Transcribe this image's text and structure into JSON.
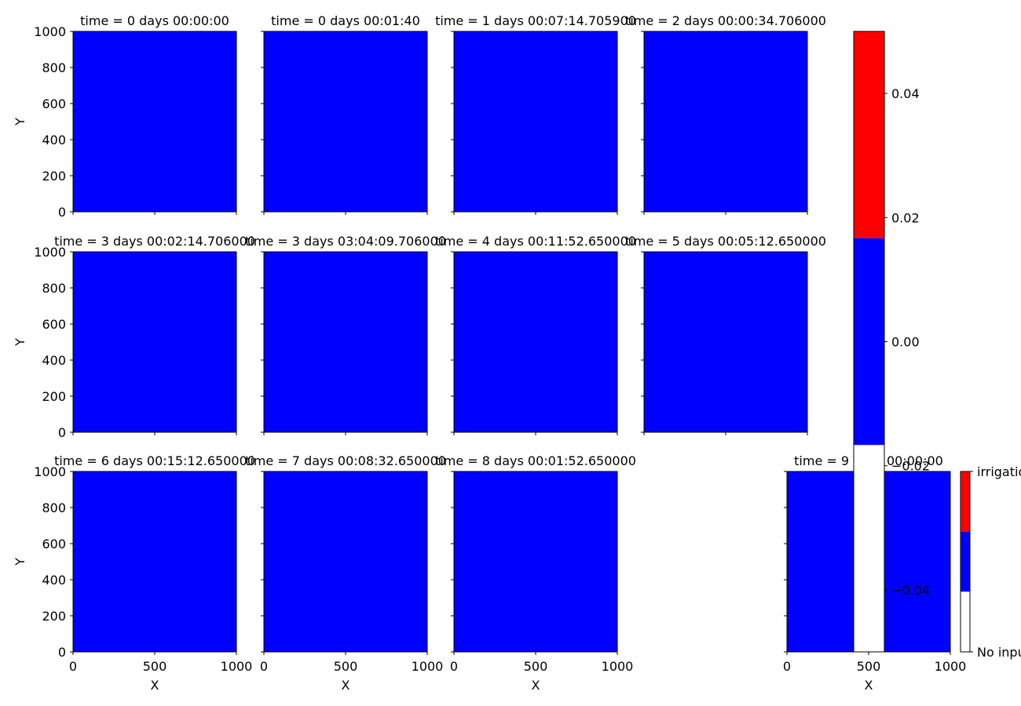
{
  "chart_data": {
    "type": "heatmap",
    "colors": {
      "field": "#0000ff",
      "irrigation": "#ff0000",
      "no_input": "#ffffff"
    },
    "panels": [
      {
        "title": "time = 0 days 00:00:00"
      },
      {
        "title": "time = 0 days 00:01:40"
      },
      {
        "title": "time = 1 days 00:07:14.705900"
      },
      {
        "title": "time = 2 days 00:00:34.706000"
      },
      {
        "title": "time = 3 days 00:02:14.706000"
      },
      {
        "title": "time = 3 days 03:04:09.706000"
      },
      {
        "title": "time = 4 days 00:11:52.650000"
      },
      {
        "title": "time = 5 days 00:05:12.650000"
      },
      {
        "title": "time = 6 days 00:15:12.650000"
      },
      {
        "title": "time = 7 days 00:08:32.650000"
      },
      {
        "title": "time = 8 days 00:01:52.650000"
      },
      {
        "title": "time = 9 days 00:00:00"
      }
    ],
    "xlabel": "X",
    "ylabel": "Y",
    "xlim": [
      0,
      1000
    ],
    "ylim": [
      0,
      1000
    ],
    "x_ticks": [
      "0",
      "500",
      "1000"
    ],
    "y_ticks": [
      "0",
      "200",
      "400",
      "600",
      "800",
      "1000"
    ],
    "colorbar_main": {
      "range": [
        -0.05,
        0.05
      ],
      "ticks": [
        "0.04",
        "0.02",
        "0.00",
        "−0.02",
        "−0.04"
      ],
      "segments": [
        {
          "color": "#ff0000",
          "from": 0.01667,
          "to": 0.05
        },
        {
          "color": "#0000ff",
          "from": -0.01667,
          "to": 0.01667
        },
        {
          "color": "#ffffff",
          "from": -0.05,
          "to": -0.01667
        }
      ]
    },
    "colorbar_categories": {
      "labels": [
        "irrigation",
        "No input"
      ]
    }
  }
}
